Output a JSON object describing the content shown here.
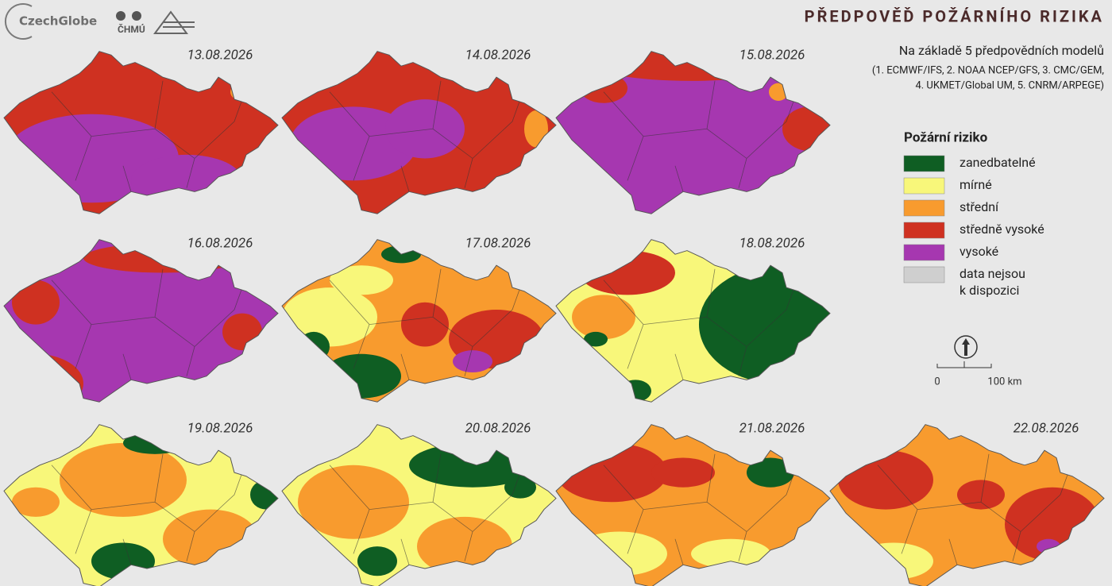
{
  "header": {
    "title": "PŘEDPOVĚĎ POŽÁRNÍHO RIZIKA",
    "subtitle": "Na základě 5 předpovědních modelů",
    "models": [
      "(1. ECMWF/IFS, 2. NOAA NCEP/GFS, 3. CMC/GEM,",
      "4. UKMET/Global UM, 5. CNRM/ARPEGE)"
    ]
  },
  "logos": [
    "CzechGlobe",
    "ČHMÚ"
  ],
  "maps": [
    {
      "date": "13.08.2026"
    },
    {
      "date": "14.08.2026"
    },
    {
      "date": "15.08.2026"
    },
    {
      "date": "16.08.2026"
    },
    {
      "date": "17.08.2026"
    },
    {
      "date": "18.08.2026"
    },
    {
      "date": "19.08.2026"
    },
    {
      "date": "20.08.2026"
    },
    {
      "date": "21.08.2026"
    },
    {
      "date": "22.08.2026"
    }
  ],
  "legend": {
    "title": "Požární riziko",
    "items": [
      {
        "label": [
          "zanedbatelné"
        ],
        "color": "#0f5e23"
      },
      {
        "label": [
          "mírné"
        ],
        "color": "#f8f77a"
      },
      {
        "label": [
          "střední"
        ],
        "color": "#f89b2e"
      },
      {
        "label": [
          "středně vysoké"
        ],
        "color": "#cf3121"
      },
      {
        "label": [
          "vysoké"
        ],
        "color": "#a637b0"
      },
      {
        "label": [
          "data nejsou",
          "k dispozici"
        ],
        "color": "#cfcfcf"
      }
    ]
  },
  "scale": {
    "labels": [
      "0",
      "100 km"
    ]
  }
}
